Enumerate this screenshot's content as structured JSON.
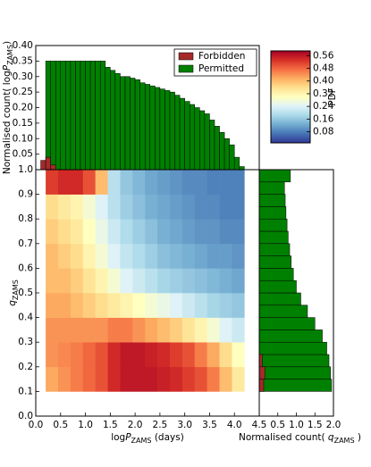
{
  "chart_data": [
    {
      "type": "heatmap",
      "xlabel": [
        "log",
        "P",
        "ZAMS",
        " (days)"
      ],
      "ylabel": [
        "q",
        "ZAMS"
      ],
      "xlim": [
        0,
        4.5
      ],
      "ylim": [
        0,
        1
      ],
      "xticks": [
        {
          "value": 0,
          "label": "0.0"
        },
        {
          "value": 0.5,
          "label": "0.5"
        },
        {
          "value": 1,
          "label": "1.0"
        },
        {
          "value": 1.5,
          "label": "1.5"
        },
        {
          "value": 2,
          "label": "2.0"
        },
        {
          "value": 2.5,
          "label": "2.5"
        },
        {
          "value": 3,
          "label": "3.0"
        },
        {
          "value": 3.5,
          "label": "3.5"
        },
        {
          "value": 4,
          "label": "4.0"
        },
        {
          "value": 4.5,
          "label": "4.5"
        }
      ],
      "yticks": [
        {
          "value": 0,
          "label": "0.0"
        },
        0.1,
        0.2,
        0.3,
        0.4,
        0.5,
        0.6,
        0.7,
        0.8,
        0.9,
        {
          "value": 1,
          "label": "1.0"
        }
      ],
      "x_edges": [
        0.2,
        0.45,
        0.7,
        0.95,
        1.2,
        1.45,
        1.7,
        1.95,
        2.2,
        2.45,
        2.7,
        2.95,
        3.2,
        3.45,
        3.7,
        3.95,
        4.2
      ],
      "y_edges": [
        0.1,
        0.2,
        0.3,
        0.4,
        0.5,
        0.6,
        0.7,
        0.8,
        0.9,
        1.0
      ],
      "values": [
        [
          0.42,
          0.44,
          0.46,
          0.48,
          0.5,
          0.54,
          0.56,
          0.56,
          0.56,
          0.55,
          0.54,
          0.52,
          0.5,
          0.46,
          0.4,
          0.34
        ],
        [
          0.44,
          0.45,
          0.46,
          0.48,
          0.5,
          0.54,
          0.56,
          0.56,
          0.55,
          0.54,
          0.52,
          0.5,
          0.46,
          0.42,
          0.36,
          0.3
        ],
        [
          0.44,
          0.44,
          0.44,
          0.44,
          0.44,
          0.46,
          0.46,
          0.44,
          0.42,
          0.4,
          0.38,
          0.35,
          0.32,
          0.28,
          0.24,
          0.22
        ],
        [
          0.42,
          0.42,
          0.4,
          0.38,
          0.36,
          0.34,
          0.32,
          0.3,
          0.28,
          0.26,
          0.24,
          0.22,
          0.2,
          0.18,
          0.17,
          0.16
        ],
        [
          0.4,
          0.4,
          0.38,
          0.35,
          0.32,
          0.28,
          0.24,
          0.22,
          0.2,
          0.18,
          0.17,
          0.16,
          0.15,
          0.14,
          0.13,
          0.12
        ],
        [
          0.4,
          0.38,
          0.36,
          0.32,
          0.28,
          0.24,
          0.21,
          0.19,
          0.17,
          0.15,
          0.14,
          0.13,
          0.12,
          0.11,
          0.11,
          0.1
        ],
        [
          0.38,
          0.36,
          0.34,
          0.3,
          0.26,
          0.22,
          0.19,
          0.17,
          0.15,
          0.13,
          0.12,
          0.11,
          0.1,
          0.1,
          0.09,
          0.09
        ],
        [
          0.36,
          0.34,
          0.32,
          0.28,
          0.24,
          0.2,
          0.17,
          0.15,
          0.13,
          0.12,
          0.11,
          0.1,
          0.09,
          0.09,
          0.08,
          0.08
        ],
        [
          0.52,
          0.54,
          0.54,
          0.5,
          0.4,
          0.2,
          0.16,
          0.14,
          0.12,
          0.11,
          0.1,
          0.09,
          0.09,
          0.08,
          0.08,
          0.08
        ]
      ],
      "colormap": [
        "#313695",
        "#4575b4",
        "#74add1",
        "#abd9e9",
        "#e0f3f8",
        "#ffffbf",
        "#fee090",
        "#fdae61",
        "#f46d43",
        "#d73027",
        "#a50026"
      ],
      "colorbar": {
        "label": "PDF",
        "clim": [
          0.01,
          0.59
        ],
        "ticks": [
          0.08,
          0.16,
          0.24,
          0.32,
          {
            "value": 0.4,
            "label": "0.40"
          },
          0.48,
          0.56
        ]
      }
    },
    {
      "type": "histogram",
      "orientation": "vertical",
      "ylabel": [
        "Normalised count( log",
        "P",
        "ZAMS",
        ")"
      ],
      "xlim": [
        0,
        4.5
      ],
      "ylim": [
        0,
        0.4
      ],
      "yticks": [
        {
          "value": 0.05,
          "label": "0.05"
        },
        {
          "value": 0.1,
          "label": "0.10"
        },
        {
          "value": 0.15,
          "label": "0.15"
        },
        {
          "value": 0.2,
          "label": "0.20"
        },
        {
          "value": 0.25,
          "label": "0.25"
        },
        {
          "value": 0.3,
          "label": "0.30"
        },
        {
          "value": 0.35,
          "label": "0.35"
        },
        {
          "value": 0.4,
          "label": "0.40"
        }
      ],
      "legend": "upper right",
      "series": [
        {
          "name": "Forbidden",
          "color": "#a52a2a",
          "bins": [
            0.1,
            0.2,
            0.3,
            0.4
          ],
          "values": [
            0.03,
            0.04,
            0.015
          ]
        },
        {
          "name": "Permitted",
          "color": "#008000",
          "bins": [
            0.2,
            0.3,
            0.4,
            0.5,
            0.6,
            0.7,
            0.8,
            0.9,
            1.0,
            1.1,
            1.2,
            1.3,
            1.4,
            1.5,
            1.6,
            1.7,
            1.8,
            1.9,
            2.0,
            2.1,
            2.2,
            2.3,
            2.4,
            2.5,
            2.6,
            2.7,
            2.8,
            2.9,
            3.0,
            3.1,
            3.2,
            3.3,
            3.4,
            3.5,
            3.6,
            3.7,
            3.8,
            3.9,
            4.0,
            4.1,
            4.2
          ],
          "values": [
            0.35,
            0.35,
            0.35,
            0.35,
            0.35,
            0.35,
            0.35,
            0.35,
            0.35,
            0.35,
            0.35,
            0.35,
            0.33,
            0.32,
            0.31,
            0.3,
            0.3,
            0.295,
            0.29,
            0.28,
            0.275,
            0.27,
            0.265,
            0.26,
            0.255,
            0.25,
            0.24,
            0.23,
            0.22,
            0.21,
            0.2,
            0.19,
            0.18,
            0.16,
            0.14,
            0.12,
            0.1,
            0.08,
            0.04,
            0.01
          ]
        }
      ]
    },
    {
      "type": "histogram",
      "orientation": "horizontal",
      "xlabel": [
        "Normalised count( ",
        "q",
        "ZAMS",
        " )"
      ],
      "xlim": [
        0,
        2
      ],
      "ylim": [
        0,
        1
      ],
      "xticks": [
        0.5,
        {
          "value": 1,
          "label": "1.0"
        },
        1.5,
        {
          "value": 2,
          "label": "2.0"
        }
      ],
      "series": [
        {
          "name": "Forbidden",
          "color": "#a52a2a",
          "bins": [
            0.1,
            0.15,
            0.2,
            0.25
          ],
          "values": [
            0.12,
            0.15,
            0.08
          ]
        },
        {
          "name": "Permitted",
          "color": "#008000",
          "bins": [
            0.1,
            0.15,
            0.2,
            0.25,
            0.3,
            0.35,
            0.4,
            0.45,
            0.5,
            0.55,
            0.6,
            0.65,
            0.7,
            0.75,
            0.8,
            0.85,
            0.9,
            0.95,
            1.0
          ],
          "values": [
            1.95,
            1.92,
            1.88,
            1.82,
            1.7,
            1.5,
            1.3,
            1.12,
            1.0,
            0.92,
            0.86,
            0.82,
            0.78,
            0.75,
            0.72,
            0.7,
            0.68,
            0.84
          ]
        }
      ]
    }
  ]
}
